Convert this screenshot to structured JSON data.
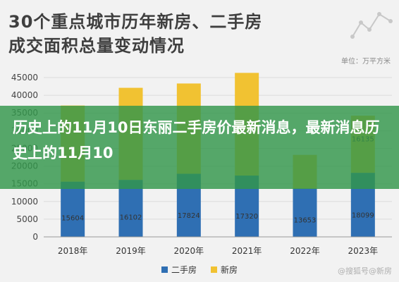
{
  "title_lines": [
    "30个重点城市历年新房、二手房",
    "成交面积总量变动情况"
  ],
  "unit": "单位：万平方米",
  "overlay_text": "历史上的11月10日东丽二手房价最新消息，最新消息历史上的11月10",
  "watermark": "@搜狐号@新房",
  "colors": {
    "second_hand": "#2f6fb3",
    "new": "#f1c232",
    "overlay": "#2f9a4b"
  },
  "chart_data": {
    "type": "bar",
    "stacked": true,
    "categories": [
      "2018年",
      "2019年",
      "2020年",
      "2021年",
      "2022年",
      "2023年"
    ],
    "series": [
      {
        "name": "二手房",
        "values": [
          15604,
          16102,
          17824,
          17320,
          13653,
          18099
        ],
        "labels": [
          "15604",
          "16102",
          "17824",
          "17320",
          "13653",
          "18099"
        ]
      },
      {
        "name": "新房",
        "values": [
          21500,
          26000,
          25500,
          29000,
          9500,
          16135
        ],
        "labels": [
          "",
          "",
          "",
          "",
          "",
          "16135"
        ]
      }
    ],
    "ylim": [
      0,
      45000
    ],
    "yticks": [
      "0",
      "5000",
      "10000",
      "15000",
      "20000",
      "25000",
      "30000",
      "35000",
      "40000",
      "45000"
    ],
    "grid": true,
    "legend": "bottom"
  }
}
